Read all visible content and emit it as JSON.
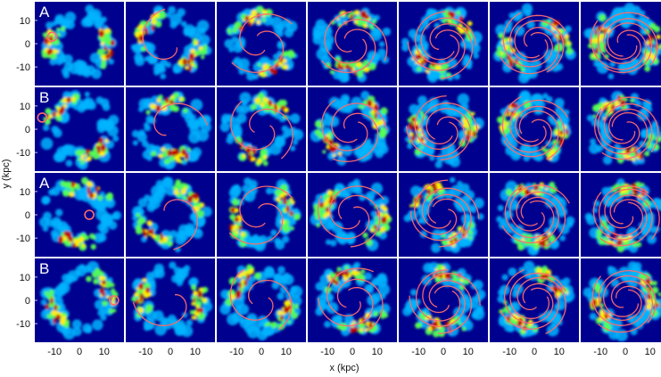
{
  "figure": {
    "xlabel": "x (kpc)",
    "ylabel": "y (kpc)",
    "ticks": [
      "-10",
      "0",
      "10"
    ],
    "y_ticks": [
      "10",
      "0",
      "-10"
    ],
    "row_labels": [
      "A",
      "B",
      "A",
      "B"
    ]
  },
  "colors": {
    "background": "#00008f",
    "orbit": "#ff6b6b",
    "density_low": "#00b4ff",
    "density_mid": "#55ff55",
    "density_high": "#ffee00",
    "density_peak": "#c00000"
  },
  "chart_data": {
    "type": "heatmap",
    "rows": 4,
    "columns": 7,
    "xlim": [
      -18,
      18
    ],
    "ylim": [
      -18,
      18
    ],
    "x_ticks": [
      -10,
      0,
      10
    ],
    "y_ticks": [
      10,
      0,
      -10
    ],
    "row_labels": [
      "A",
      "B",
      "A",
      "B"
    ]
  }
}
